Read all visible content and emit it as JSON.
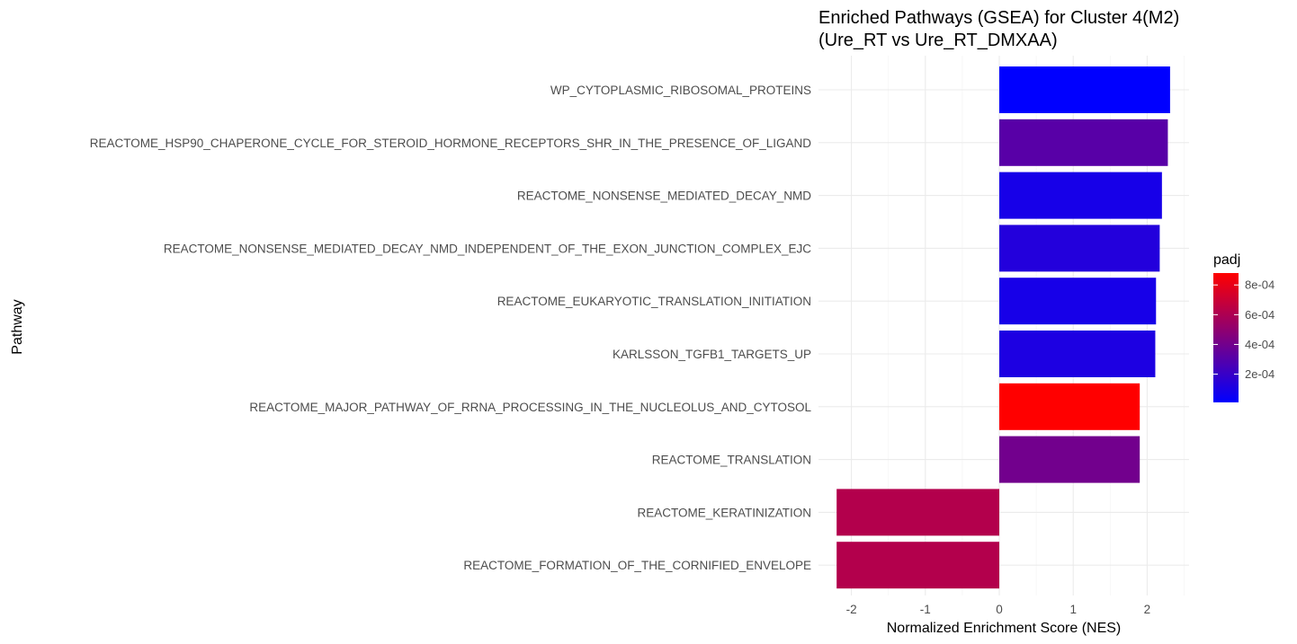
{
  "chart_data": {
    "type": "bar",
    "orientation": "horizontal",
    "title_lines": [
      "Enriched Pathways (GSEA) for Cluster 4(M2)",
      "(Ure_RT vs Ure_RT_DMXAA)"
    ],
    "xlabel": "Normalized Enrichment Score (NES)",
    "ylabel": "Pathway",
    "xlim": [
      -2.2,
      2.5
    ],
    "x_ticks": [
      -2,
      -1,
      0,
      1,
      2
    ],
    "x_tick_labels": [
      "-2",
      "-1",
      "0",
      "1",
      "2"
    ],
    "grid": true,
    "categories": [
      "WP_CYTOPLASMIC_RIBOSOMAL_PROTEINS",
      "REACTOME_HSP90_CHAPERONE_CYCLE_FOR_STEROID_HORMONE_RECEPTORS_SHR_IN_THE_PRESENCE_OF_LIGAND",
      "REACTOME_NONSENSE_MEDIATED_DECAY_NMD",
      "REACTOME_NONSENSE_MEDIATED_DECAY_NMD_INDEPENDENT_OF_THE_EXON_JUNCTION_COMPLEX_EJC",
      "REACTOME_EUKARYOTIC_TRANSLATION_INITIATION",
      "KARLSSON_TGFB1_TARGETS_UP",
      "REACTOME_MAJOR_PATHWAY_OF_RRNA_PROCESSING_IN_THE_NUCLEOLUS_AND_CYTOSOL",
      "REACTOME_TRANSLATION",
      "REACTOME_KERATINIZATION",
      "REACTOME_FORMATION_OF_THE_CORNIFIED_ENVELOPE"
    ],
    "values": [
      2.31,
      2.28,
      2.2,
      2.17,
      2.12,
      2.11,
      1.9,
      1.9,
      -2.2,
      -2.2
    ],
    "padj": [
      1e-05,
      0.00031,
      9e-05,
      0.00013,
      9e-05,
      0.00011,
      0.00088,
      0.0004,
      0.00062,
      0.00062
    ],
    "legend": {
      "title": "padj",
      "placement": "right",
      "range": [
        1e-05,
        0.00088
      ],
      "low_color": "#0000ff",
      "high_color": "#ff0000",
      "ticks": [
        0.0002,
        0.0004,
        0.0006,
        0.0008
      ],
      "tick_labels": [
        "2e-04",
        "4e-04",
        "6e-04",
        "8e-04"
      ]
    }
  }
}
